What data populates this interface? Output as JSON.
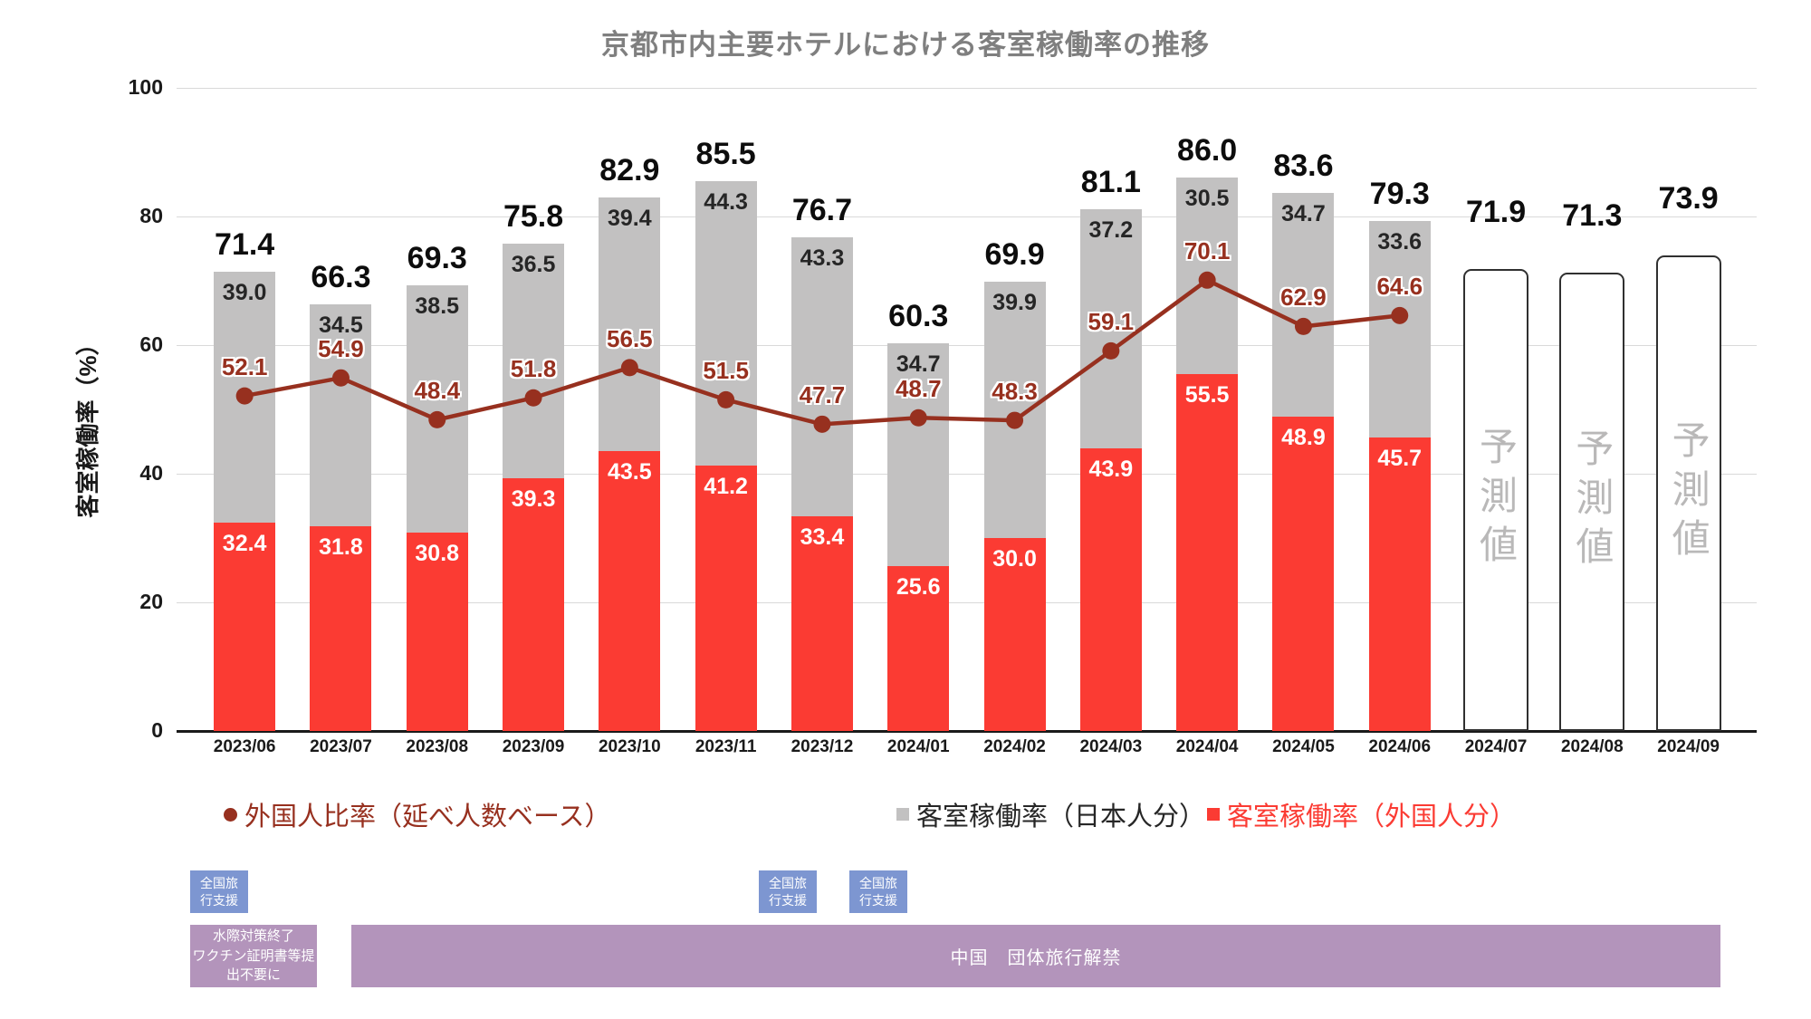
{
  "title": "京都市内主要ホテルにおける客室稼働率の推移",
  "y_axis": {
    "title": "客室稼働率（%）",
    "ticks": [
      0,
      20,
      40,
      60,
      80,
      100
    ]
  },
  "chart_data": {
    "type": "bar",
    "subtype": "stacked-bar-with-line",
    "categories": [
      "2023/06",
      "2023/07",
      "2023/08",
      "2023/09",
      "2023/10",
      "2023/11",
      "2023/12",
      "2024/01",
      "2024/02",
      "2024/03",
      "2024/04",
      "2024/05",
      "2024/06",
      "2024/07",
      "2024/08",
      "2024/09"
    ],
    "series": [
      {
        "name": "客室稼働率（外国人分）",
        "type": "bar",
        "color": "#fb3b33",
        "values": [
          32.4,
          31.8,
          30.8,
          39.3,
          43.5,
          41.2,
          33.4,
          25.6,
          30.0,
          43.9,
          55.5,
          48.9,
          45.7,
          null,
          null,
          null
        ]
      },
      {
        "name": "客室稼働率（日本人分）",
        "type": "bar",
        "color": "#c2c1c1",
        "values": [
          39.0,
          34.5,
          38.5,
          36.5,
          39.4,
          44.3,
          43.3,
          34.7,
          39.9,
          37.2,
          30.5,
          34.7,
          33.6,
          null,
          null,
          null
        ]
      },
      {
        "name": "外国人比率（延べ人数ベース）",
        "type": "line",
        "color": "#97301f",
        "values": [
          52.1,
          54.9,
          48.4,
          51.8,
          56.5,
          51.5,
          47.7,
          48.7,
          48.3,
          59.1,
          70.1,
          62.9,
          64.6,
          null,
          null,
          null
        ]
      }
    ],
    "totals": [
      71.4,
      66.3,
      69.3,
      75.8,
      82.9,
      85.5,
      76.7,
      60.3,
      69.9,
      81.1,
      86.0,
      83.6,
      79.3,
      71.9,
      71.3,
      73.9
    ],
    "forecast": {
      "indices": [
        13,
        14,
        15
      ],
      "label": "予測値",
      "bar_fill": "#ffffff",
      "bar_border": "#303030",
      "text_color": "#b9b8b8"
    },
    "ylim": [
      0,
      100
    ],
    "grid": true,
    "legend_position": "bottom"
  },
  "legend": {
    "items": [
      {
        "label": "外国人比率（延べ人数ベース）",
        "marker": "circle",
        "color": "#97301f"
      },
      {
        "label": "客室稼働率（日本人分）",
        "marker": "square",
        "color": "#c2c1c1",
        "text_color": "#262626"
      },
      {
        "label": "客室稼働率（外国人分）",
        "marker": "square",
        "color": "#fb3b33"
      }
    ]
  },
  "annotations": {
    "travel_support": {
      "label": "全国旅\n行支援",
      "color": "#7d96d1"
    },
    "border_measures": {
      "label": "水際対策終了\nワクチン証明書等提\n出不要に",
      "color": "#b394bb"
    },
    "china_group_travel": {
      "label": "中国　団体旅行解禁",
      "color": "#b394bb"
    }
  }
}
